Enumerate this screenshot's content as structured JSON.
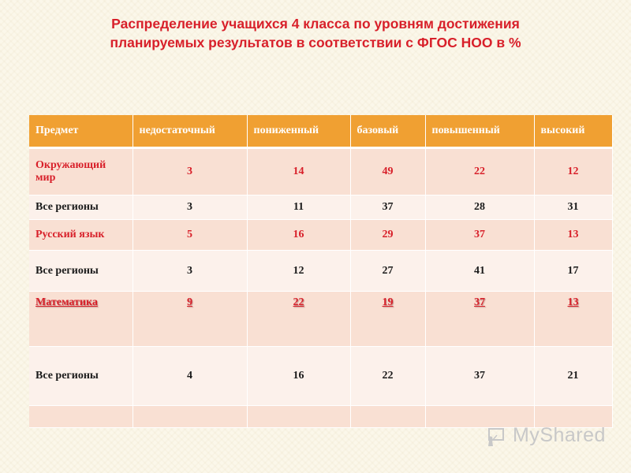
{
  "title": {
    "line1": "Распределение учащихся 4 класса по уровням достижения",
    "line2": "планируемых результатов в соответствии с ФГОС НОО в %"
  },
  "table": {
    "headers": [
      "Предмет",
      "недостаточный",
      "пониженный",
      "базовый",
      "повышенный",
      "высокий"
    ],
    "rows": [
      {
        "subject": "Окружающий мир",
        "values": [
          "3",
          "14",
          "49",
          "22",
          "12"
        ]
      },
      {
        "subject": "Все регионы",
        "values": [
          "3",
          "11",
          "37",
          "28",
          "31"
        ]
      },
      {
        "subject": "Русский язык",
        "values": [
          "5",
          "16",
          "29",
          "37",
          "13"
        ]
      },
      {
        "subject": "Все регионы",
        "values": [
          "3",
          "12",
          "27",
          "41",
          "17"
        ]
      },
      {
        "subject": "Математика",
        "values": [
          "9",
          "22",
          "19",
          "37",
          "13"
        ]
      },
      {
        "subject": "Все регионы",
        "values": [
          "4",
          "16",
          "22",
          "37",
          "21"
        ]
      }
    ]
  },
  "logo": {
    "text": "MyShared",
    "icon": "teacher-board-icon"
  },
  "colors": {
    "title": "#d8202a",
    "header_bg": "#f0a032",
    "row_pink": "#f9e0d3",
    "row_light": "#fcf1eb"
  }
}
